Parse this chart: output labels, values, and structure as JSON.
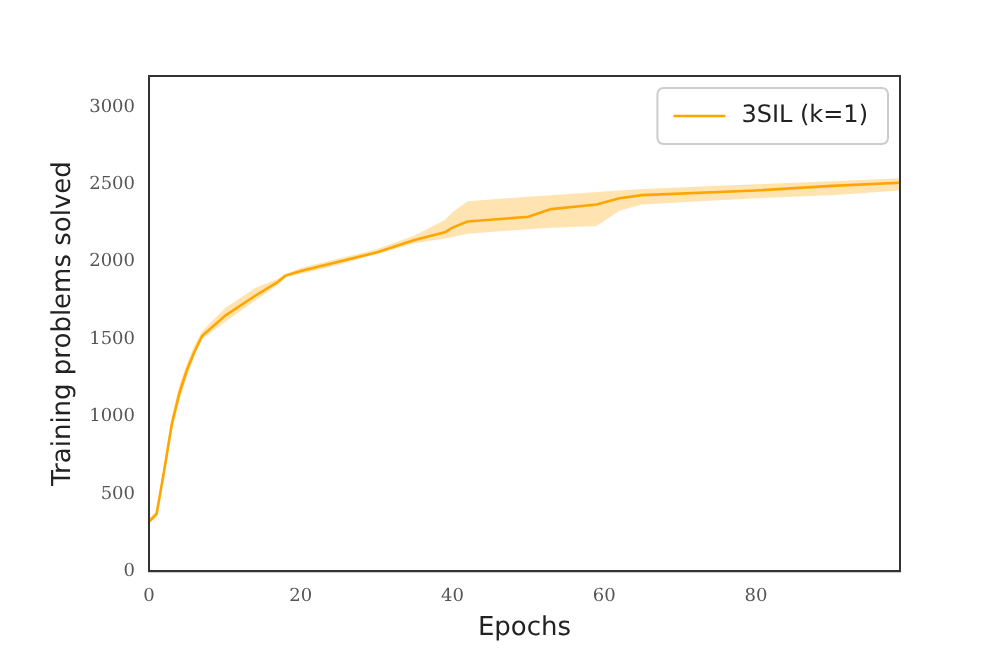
{
  "chart_data": {
    "type": "line",
    "xlabel": "Epochs",
    "ylabel": "Training problems solved",
    "xlim": [
      0,
      99
    ],
    "xticks": [
      0,
      20,
      40,
      60,
      80
    ],
    "ylim": [
      0,
      3200
    ],
    "yticks": [
      0,
      500,
      1000,
      1500,
      2000,
      2500,
      3000
    ],
    "grid": false,
    "legend": "top right",
    "marker": "none",
    "line_style": "solid",
    "series": [
      {
        "name": "3SIL (k=1)",
        "color": "#ffa500",
        "x": [
          0,
          1,
          2,
          3,
          4,
          5,
          6,
          7,
          10,
          14,
          17,
          18,
          20,
          25,
          30,
          35,
          39,
          40,
          42,
          50,
          53,
          59,
          62,
          65,
          80,
          90,
          99
        ],
        "values": [
          320,
          370,
          650,
          950,
          1150,
          1300,
          1420,
          1520,
          1650,
          1780,
          1870,
          1910,
          1940,
          2000,
          2060,
          2140,
          2190,
          2220,
          2260,
          2290,
          2340,
          2370,
          2410,
          2430,
          2460,
          2490,
          2510
        ],
        "lower": [
          310,
          350,
          620,
          900,
          1100,
          1260,
          1390,
          1500,
          1610,
          1750,
          1850,
          1900,
          1920,
          1980,
          2050,
          2120,
          2150,
          2160,
          2180,
          2210,
          2220,
          2230,
          2330,
          2370,
          2410,
          2430,
          2460
        ],
        "upper": [
          340,
          390,
          690,
          1000,
          1200,
          1340,
          1460,
          1550,
          1700,
          1830,
          1890,
          1920,
          1960,
          2020,
          2080,
          2170,
          2270,
          2320,
          2390,
          2420,
          2430,
          2450,
          2460,
          2470,
          2500,
          2520,
          2540
        ]
      }
    ]
  }
}
